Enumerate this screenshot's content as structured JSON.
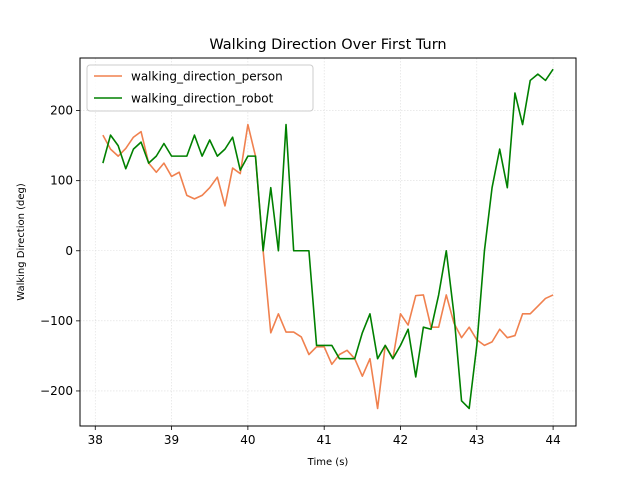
{
  "chart_data": {
    "type": "line",
    "title": "Walking Direction Over First Turn",
    "xlabel": "Time (s)",
    "ylabel": "Walking Direction (deg)",
    "xlim": [
      37.8,
      44.3
    ],
    "ylim": [
      -250,
      275
    ],
    "xticks": [
      38,
      39,
      40,
      41,
      42,
      43,
      44
    ],
    "yticks": [
      -200,
      -100,
      0,
      100,
      200
    ],
    "grid": true,
    "legend_position": "top-left",
    "series": [
      {
        "name": "walking_direction_person",
        "color": "#f0814f",
        "x": [
          38.1,
          38.2,
          38.3,
          38.4,
          38.5,
          38.6,
          38.7,
          38.8,
          38.9,
          39.0,
          39.1,
          39.2,
          39.3,
          39.4,
          39.5,
          39.6,
          39.7,
          39.8,
          39.9,
          40.0,
          40.1,
          40.2,
          40.3,
          40.4,
          40.5,
          40.6,
          40.7,
          40.8,
          40.9,
          41.0,
          41.1,
          41.2,
          41.3,
          41.4,
          41.5,
          41.6,
          41.7,
          41.8,
          41.9,
          42.0,
          42.1,
          42.2,
          42.3,
          42.4,
          42.5,
          42.6,
          42.7,
          42.8,
          42.9,
          43.0,
          43.1,
          43.2,
          43.3,
          43.4,
          43.5,
          43.6,
          43.7,
          43.8,
          43.9,
          44.0
        ],
        "values": [
          165,
          145,
          135,
          146,
          162,
          170,
          125,
          112,
          125,
          106,
          112,
          79,
          74,
          79,
          90,
          105,
          64,
          118,
          110,
          180,
          135,
          0,
          -117,
          -90,
          -116,
          -116,
          -123,
          -148,
          -137,
          -137,
          -162,
          -148,
          -142,
          -154,
          -179,
          -154,
          -225,
          -135,
          -154,
          -90,
          -106,
          -64,
          -63,
          -109,
          -109,
          -63,
          -103,
          -124,
          -109,
          -127,
          -135,
          -130,
          -112,
          -124,
          -121,
          -90,
          -90,
          -79,
          -68,
          -63
        ]
      },
      {
        "name": "walking_direction_robot",
        "color": "#008000",
        "x": [
          38.1,
          38.2,
          38.3,
          38.4,
          38.5,
          38.6,
          38.7,
          38.8,
          38.9,
          39.0,
          39.1,
          39.2,
          39.3,
          39.4,
          39.5,
          39.6,
          39.7,
          39.8,
          39.9,
          40.0,
          40.1,
          40.2,
          40.3,
          40.4,
          40.5,
          40.6,
          40.7,
          40.8,
          40.9,
          41.0,
          41.1,
          41.2,
          41.3,
          41.4,
          41.5,
          41.6,
          41.7,
          41.8,
          41.9,
          42.0,
          42.1,
          42.2,
          42.3,
          42.4,
          42.5,
          42.6,
          42.7,
          42.8,
          42.9,
          43.0,
          43.1,
          43.2,
          43.3,
          43.4,
          43.5,
          43.6,
          43.7,
          43.8,
          43.9,
          44.0
        ],
        "values": [
          125,
          165,
          150,
          117,
          145,
          155,
          125,
          135,
          153,
          135,
          135,
          135,
          165,
          135,
          158,
          135,
          145,
          162,
          115,
          135,
          135,
          0,
          90,
          0,
          180,
          0,
          0,
          0,
          -135,
          -135,
          -135,
          -154,
          -154,
          -154,
          -117,
          -90,
          -154,
          -135,
          -154,
          -135,
          -112,
          -180,
          -109,
          -112,
          -63,
          0,
          -90,
          -214,
          -225,
          -135,
          0,
          90,
          145,
          90,
          225,
          180,
          243,
          252,
          243,
          259
        ]
      }
    ]
  }
}
